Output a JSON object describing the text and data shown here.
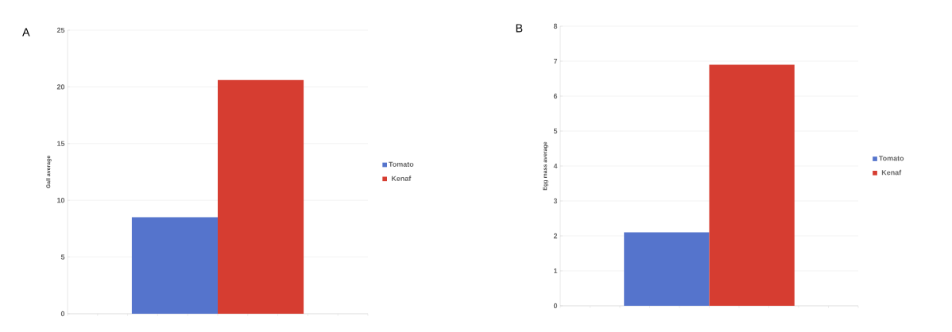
{
  "chart_data": [
    {
      "type": "bar",
      "title": "A",
      "ylabel": "Gall average",
      "categories": [
        null
      ],
      "series": [
        {
          "name": "Tomato",
          "color": "#5574cc",
          "values": [
            8.5
          ]
        },
        {
          "name": "Kenaf",
          "color": "#d63d31",
          "values": [
            20.6
          ]
        }
      ],
      "ylim": [
        0,
        25
      ],
      "yticks": [
        0,
        5,
        10,
        15,
        20,
        25
      ],
      "grid": "y",
      "legend": "right"
    },
    {
      "type": "bar",
      "title": "B",
      "ylabel": "Egg mass average",
      "categories": [
        null
      ],
      "series": [
        {
          "name": "Tomato",
          "color": "#5574cc",
          "values": [
            2.1
          ]
        },
        {
          "name": "Kenaf",
          "color": "#d63d31",
          "values": [
            6.9
          ]
        }
      ],
      "ylim": [
        0,
        8
      ],
      "yticks": [
        0,
        1,
        2,
        3,
        4,
        5,
        6,
        7,
        8
      ],
      "grid": "y",
      "legend": "right"
    }
  ]
}
